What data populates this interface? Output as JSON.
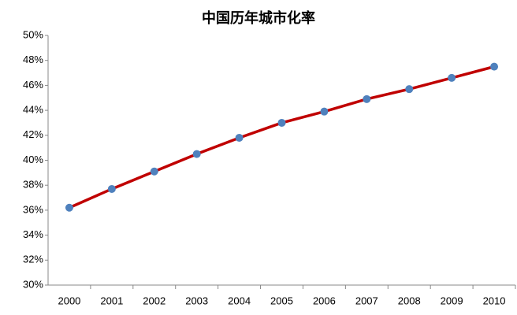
{
  "chart_data": {
    "type": "line",
    "title": "中国历年城市化率",
    "categories": [
      "2000",
      "2001",
      "2002",
      "2003",
      "2004",
      "2005",
      "2006",
      "2007",
      "2008",
      "2009",
      "2010"
    ],
    "values": [
      36.2,
      37.7,
      39.1,
      40.5,
      41.8,
      43.0,
      43.9,
      44.9,
      45.7,
      46.6,
      47.5
    ],
    "color": "#c00000",
    "marker_color": "#4f81bd",
    "ylim": [
      30,
      50
    ],
    "yticks": [
      {
        "value": 30,
        "label": "30%"
      },
      {
        "value": 32,
        "label": "32%"
      },
      {
        "value": 34,
        "label": "34%"
      },
      {
        "value": 36,
        "label": "36%"
      },
      {
        "value": 38,
        "label": "38%"
      },
      {
        "value": 40,
        "label": "40%"
      },
      {
        "value": 42,
        "label": "42%"
      },
      {
        "value": 44,
        "label": "44%"
      },
      {
        "value": 46,
        "label": "46%"
      },
      {
        "value": 48,
        "label": "48%"
      },
      {
        "value": 50,
        "label": "50%"
      }
    ],
    "grid": false
  }
}
